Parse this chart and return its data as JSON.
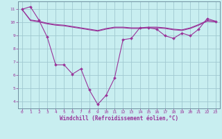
{
  "xlabel": "Windchill (Refroidissement éolien,°C)",
  "bg_color": "#c8eef0",
  "grid_color": "#a0c8d0",
  "line_color": "#993399",
  "xlim_min": -0.5,
  "xlim_max": 23.5,
  "ylim_min": 3.5,
  "ylim_max": 11.6,
  "yticks": [
    4,
    5,
    6,
    7,
    8,
    9,
    10,
    11
  ],
  "xticks": [
    0,
    1,
    2,
    3,
    4,
    5,
    6,
    7,
    8,
    9,
    10,
    11,
    12,
    13,
    14,
    15,
    16,
    17,
    18,
    19,
    20,
    21,
    22,
    23
  ],
  "line1_x": [
    0,
    1,
    2,
    3,
    4,
    5,
    6,
    7,
    8,
    9,
    10,
    11,
    12,
    13,
    14,
    15,
    16,
    17,
    18,
    19,
    20,
    21,
    22,
    23
  ],
  "line1_y": [
    11.0,
    11.2,
    10.2,
    8.9,
    6.8,
    6.8,
    6.1,
    6.5,
    4.9,
    3.8,
    4.5,
    5.8,
    8.7,
    8.8,
    9.6,
    9.6,
    9.5,
    9.0,
    8.8,
    9.2,
    9.0,
    9.5,
    10.3,
    10.1
  ],
  "line2_x": [
    0,
    1,
    2,
    3,
    4,
    5,
    6,
    7,
    8,
    9,
    10,
    11,
    12,
    13,
    14,
    15,
    16,
    17,
    18,
    19,
    20,
    21,
    22,
    23
  ],
  "line2_y": [
    11.0,
    10.15,
    10.05,
    9.9,
    9.8,
    9.75,
    9.65,
    9.55,
    9.45,
    9.35,
    9.5,
    9.6,
    9.6,
    9.55,
    9.55,
    9.6,
    9.6,
    9.55,
    9.45,
    9.4,
    9.55,
    9.8,
    10.1,
    10.05
  ],
  "line3_x": [
    0,
    1,
    2,
    3,
    4,
    5,
    6,
    7,
    8,
    9,
    10,
    11,
    12,
    13,
    14,
    15,
    16,
    17,
    18,
    19,
    20,
    21,
    22,
    23
  ],
  "line3_y": [
    11.0,
    10.2,
    10.1,
    9.95,
    9.85,
    9.8,
    9.7,
    9.6,
    9.5,
    9.4,
    9.55,
    9.65,
    9.65,
    9.6,
    9.6,
    9.65,
    9.65,
    9.6,
    9.5,
    9.45,
    9.6,
    9.85,
    10.15,
    10.1
  ]
}
